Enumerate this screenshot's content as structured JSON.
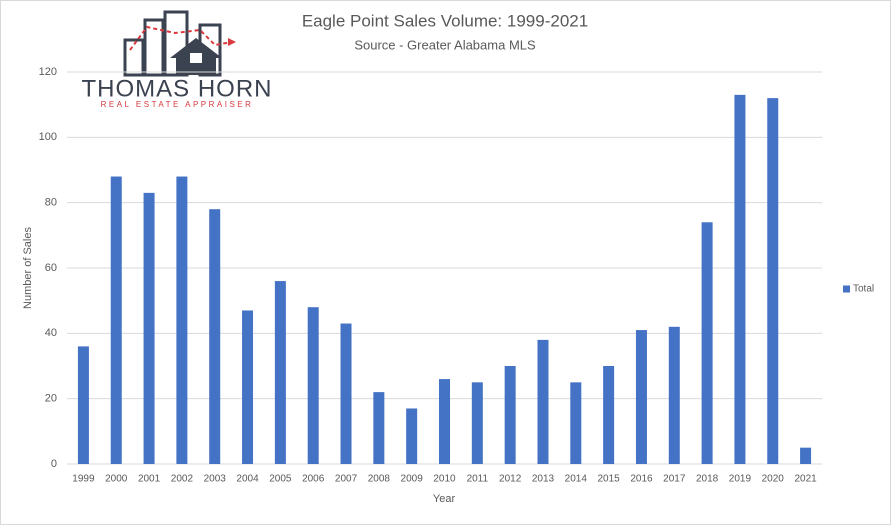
{
  "chart_data": {
    "type": "bar",
    "title": "Eagle Point Sales Volume: 1999-2021",
    "subtitle": "Source - Greater Alabama MLS",
    "x_label": "Year",
    "y_label": "Number of Sales",
    "categories": [
      "1999",
      "2000",
      "2001",
      "2002",
      "2003",
      "2004",
      "2005",
      "2006",
      "2007",
      "2008",
      "2009",
      "2010",
      "2011",
      "2012",
      "2013",
      "2014",
      "2015",
      "2016",
      "2017",
      "2018",
      "2019",
      "2020",
      "2021"
    ],
    "series": [
      {
        "name": "Total",
        "color": "#4472c4",
        "values": [
          36,
          88,
          83,
          88,
          78,
          47,
          56,
          48,
          43,
          22,
          17,
          26,
          25,
          30,
          38,
          25,
          30,
          41,
          42,
          74,
          113,
          112,
          5
        ]
      }
    ],
    "ylim": [
      0,
      120
    ],
    "yticks": [
      0,
      20,
      40,
      60,
      80,
      100,
      120
    ],
    "grid": true,
    "legend": "right"
  },
  "logo": {
    "name": "THOMAS HORN",
    "tagline": "REAL ESTATE APPRAISER"
  }
}
